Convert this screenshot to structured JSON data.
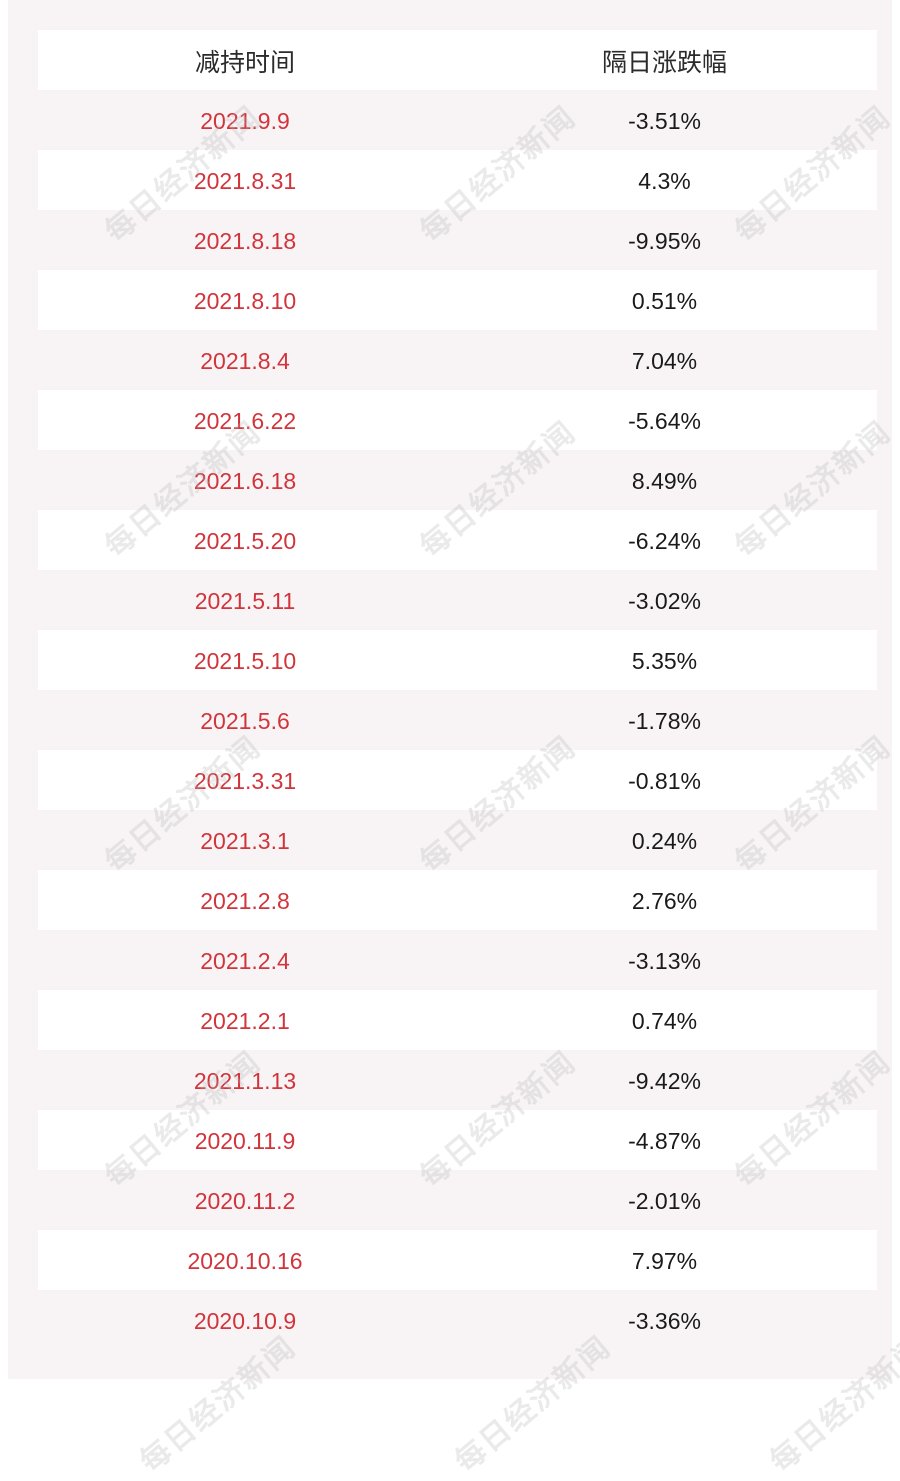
{
  "table": {
    "headers": {
      "date": "减持时间",
      "change": "隔日涨跌幅"
    },
    "rows": [
      {
        "date": "2021.9.9",
        "change": "-3.51%"
      },
      {
        "date": "2021.8.31",
        "change": "4.3%"
      },
      {
        "date": "2021.8.18",
        "change": "-9.95%"
      },
      {
        "date": "2021.8.10",
        "change": "0.51%"
      },
      {
        "date": "2021.8.4",
        "change": "7.04%"
      },
      {
        "date": "2021.6.22",
        "change": "-5.64%"
      },
      {
        "date": "2021.6.18",
        "change": "8.49%"
      },
      {
        "date": "2021.5.20",
        "change": "-6.24%"
      },
      {
        "date": "2021.5.11",
        "change": "-3.02%"
      },
      {
        "date": "2021.5.10",
        "change": "5.35%"
      },
      {
        "date": "2021.5.6",
        "change": "-1.78%"
      },
      {
        "date": "2021.3.31",
        "change": "-0.81%"
      },
      {
        "date": "2021.3.1",
        "change": "0.24%"
      },
      {
        "date": "2021.2.8",
        "change": "2.76%"
      },
      {
        "date": "2021.2.4",
        "change": "-3.13%"
      },
      {
        "date": "2021.2.1",
        "change": "0.74%"
      },
      {
        "date": "2021.1.13",
        "change": "-9.42%"
      },
      {
        "date": "2020.11.9",
        "change": "-4.87%"
      },
      {
        "date": "2020.11.2",
        "change": "-2.01%"
      },
      {
        "date": "2020.10.16",
        "change": "7.97%"
      },
      {
        "date": "2020.10.9",
        "change": "-3.36%"
      }
    ]
  },
  "colors": {
    "date_text": "#d2343b",
    "change_text": "#1a1a1a",
    "panel_bg": "#f8f4f6"
  },
  "watermark": "每日经济新闻"
}
